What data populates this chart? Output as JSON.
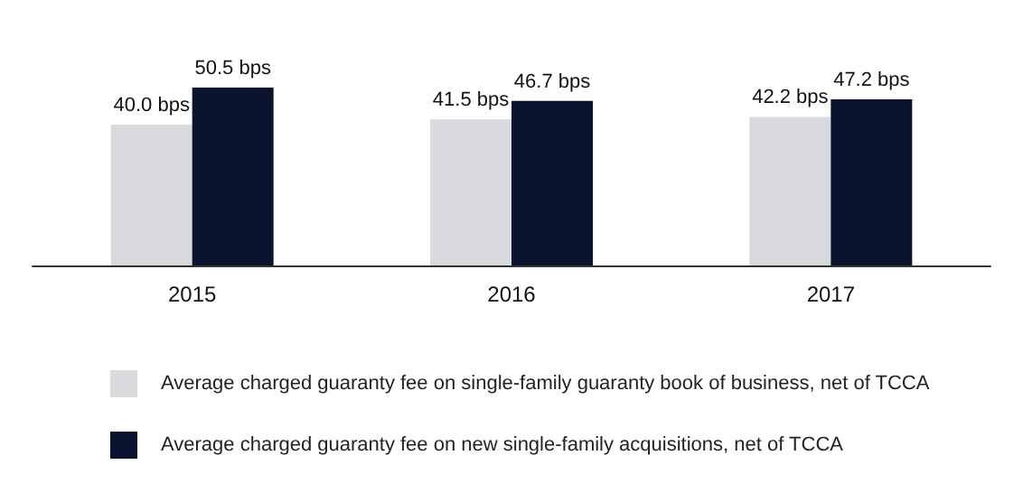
{
  "chart_data": {
    "type": "bar",
    "categories": [
      "2015",
      "2016",
      "2017"
    ],
    "series": [
      {
        "name": "Average charged guaranty fee on single-family guaranty book of business, net of TCCA",
        "color": "#d9d9de",
        "values": [
          40.0,
          41.5,
          42.2
        ],
        "value_labels": [
          "40.0 bps",
          "41.5 bps",
          "42.2 bps"
        ]
      },
      {
        "name": "Average charged guaranty fee on new single-family acquisitions, net of TCCA",
        "color": "#0b142e",
        "values": [
          50.5,
          46.7,
          47.2
        ],
        "value_labels": [
          "50.5 bps",
          "46.7 bps",
          "47.2 bps"
        ]
      }
    ],
    "legend": "bottom"
  }
}
